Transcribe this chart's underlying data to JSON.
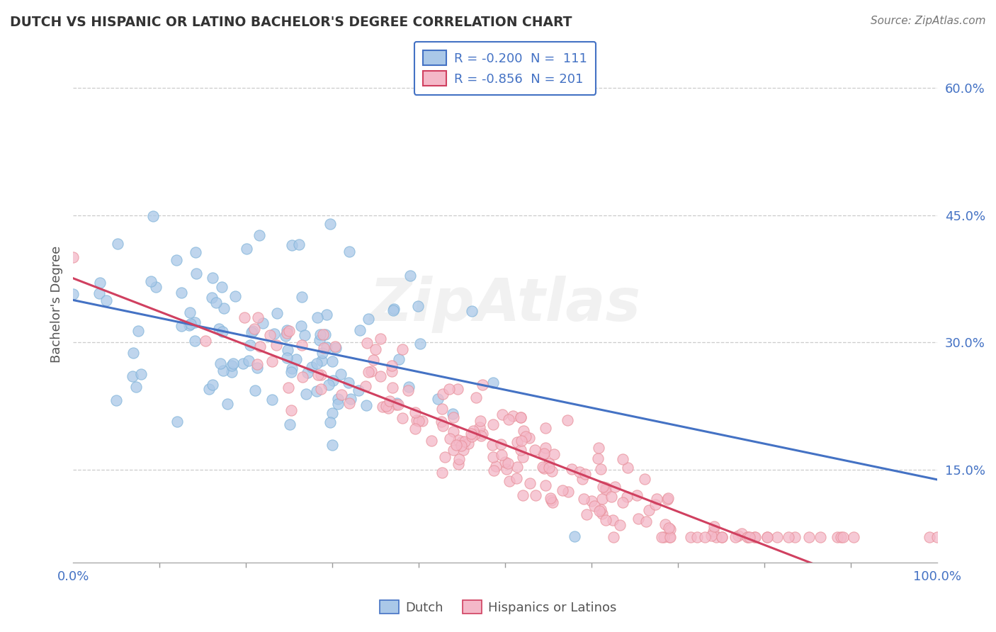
{
  "title": "DUTCH VS HISPANIC OR LATINO BACHELOR'S DEGREE CORRELATION CHART",
  "source": "Source: ZipAtlas.com",
  "ylabel": "Bachelor's Degree",
  "x_min": 0.0,
  "x_max": 1.0,
  "y_min": 0.04,
  "y_max": 0.65,
  "yticks": [
    0.15,
    0.3,
    0.45,
    0.6
  ],
  "ytick_labels": [
    "15.0%",
    "30.0%",
    "45.0%",
    "60.0%"
  ],
  "xtick_labels": [
    "0.0%",
    "100.0%"
  ],
  "legend_line1": "R = -0.200  N =  111",
  "legend_line2": "R = -0.856  N = 201",
  "dutch_color": "#aac8e8",
  "dutch_edge_color": "#7fb3d9",
  "hispanic_color": "#f4b8c8",
  "hispanic_edge_color": "#e8909a",
  "dutch_line_color": "#4472c4",
  "hispanic_line_color": "#d04060",
  "legend_dutch_color": "#aac8e8",
  "legend_hispanic_color": "#f4b8c8",
  "legend_border_color": "#4472c4",
  "watermark": "ZipAtlas",
  "background_color": "#ffffff",
  "grid_color": "#cccccc",
  "title_color": "#333333",
  "tick_color": "#4472c4",
  "axis_text_color": "#555555",
  "bottom_legend_dutch": "Dutch",
  "bottom_legend_hispanic": "Hispanics or Latinos"
}
